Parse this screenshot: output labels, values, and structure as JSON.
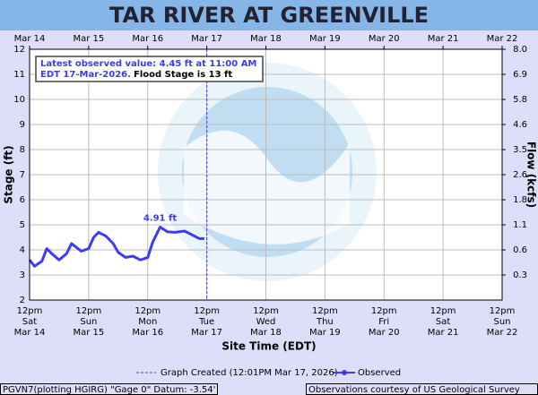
{
  "chart_data": {
    "type": "line",
    "title": "TAR RIVER AT GREENVILLE",
    "xlabel": "Site Time (EDT)",
    "ylabel": "Stage (ft)",
    "y2label": "Flow (kcfs)",
    "x": [
      "2026-03-14T12:00",
      "2026-03-14T14:00",
      "2026-03-14T17:00",
      "2026-03-14T19:00",
      "2026-03-14T21:00",
      "2026-03-15T00:00",
      "2026-03-15T03:00",
      "2026-03-15T05:00",
      "2026-03-15T07:00",
      "2026-03-15T09:00",
      "2026-03-15T12:00",
      "2026-03-15T14:00",
      "2026-03-15T16:00",
      "2026-03-15T19:00",
      "2026-03-15T22:00",
      "2026-03-16T00:00",
      "2026-03-16T03:00",
      "2026-03-16T06:00",
      "2026-03-16T09:00",
      "2026-03-16T12:00",
      "2026-03-16T14:00",
      "2026-03-16T17:00",
      "2026-03-16T20:00",
      "2026-03-16T23:00",
      "2026-03-17T03:00",
      "2026-03-17T06:00",
      "2026-03-17T09:00",
      "2026-03-17T11:00"
    ],
    "series": [
      {
        "name": "Observed",
        "color": "#3c3cf0",
        "values": [
          3.6,
          3.35,
          3.55,
          4.05,
          3.85,
          3.6,
          3.85,
          4.25,
          4.1,
          3.95,
          4.05,
          4.5,
          4.7,
          4.55,
          4.25,
          3.9,
          3.7,
          3.75,
          3.6,
          3.7,
          4.3,
          4.91,
          4.72,
          4.7,
          4.75,
          4.6,
          4.45,
          4.45
        ]
      }
    ],
    "xlim": [
      "2026-03-14T12:00",
      "2026-03-22T12:00"
    ],
    "xticks": [
      {
        "value": "2026-03-14T12:00",
        "label": [
          "12pm",
          "Sat",
          "Mar 14"
        ]
      },
      {
        "value": "2026-03-15T12:00",
        "label": [
          "12pm",
          "Sun",
          "Mar 15"
        ]
      },
      {
        "value": "2026-03-16T12:00",
        "label": [
          "12pm",
          "Mon",
          "Mar 16"
        ]
      },
      {
        "value": "2026-03-17T12:00",
        "label": [
          "12pm",
          "Tue",
          "Mar 17"
        ]
      },
      {
        "value": "2026-03-18T12:00",
        "label": [
          "12pm",
          "Wed",
          "Mar 18"
        ]
      },
      {
        "value": "2026-03-19T12:00",
        "label": [
          "12pm",
          "Thu",
          "Mar 19"
        ]
      },
      {
        "value": "2026-03-20T12:00",
        "label": [
          "12pm",
          "Fri",
          "Mar 20"
        ]
      },
      {
        "value": "2026-03-21T12:00",
        "label": [
          "12pm",
          "Sat",
          "Mar 21"
        ]
      },
      {
        "value": "2026-03-22T12:00",
        "label": [
          "12pm",
          "Sun",
          "Mar 22"
        ]
      }
    ],
    "x2ticks": [
      {
        "value": "2026-03-14T12:00",
        "label": "Mar 14"
      },
      {
        "value": "2026-03-15T12:00",
        "label": "Mar 15"
      },
      {
        "value": "2026-03-16T12:00",
        "label": "Mar 16"
      },
      {
        "value": "2026-03-17T12:00",
        "label": "Mar 17"
      },
      {
        "value": "2026-03-18T12:00",
        "label": "Mar 18"
      },
      {
        "value": "2026-03-19T12:00",
        "label": "Mar 19"
      },
      {
        "value": "2026-03-20T12:00",
        "label": "Mar 20"
      },
      {
        "value": "2026-03-21T12:00",
        "label": "Mar 21"
      },
      {
        "value": "2026-03-22T12:00",
        "label": "Mar 22"
      }
    ],
    "ylim": [
      2,
      12
    ],
    "yticks": [
      2,
      3,
      4,
      5,
      6,
      7,
      8,
      9,
      10,
      11,
      12
    ],
    "y2ticks": [
      {
        "value": 8.0,
        "label": "8.0"
      },
      6.9,
      5.8,
      4.6,
      3.5,
      2.6,
      1.8,
      1.1,
      0.6,
      0.3
    ],
    "grid": true,
    "annotations": [
      {
        "text": "4.91 ft",
        "x": "2026-03-16T17:00",
        "y": 4.91
      }
    ],
    "info": [
      "Latest observed value: 4.45 ft at 11:00 AM",
      "EDT 17-Mar-2026.",
      "Flood Stage is 13 ft"
    ],
    "created": {
      "x": "2026-03-17T12:01",
      "label": "Graph Created (12:01PM Mar 17, 2026)"
    },
    "footer_left": "PGVN7(plotting HGIRG) \"Gage 0\" Datum: -3.54'",
    "footer_right": "Observations courtesy of US Geological Survey"
  }
}
